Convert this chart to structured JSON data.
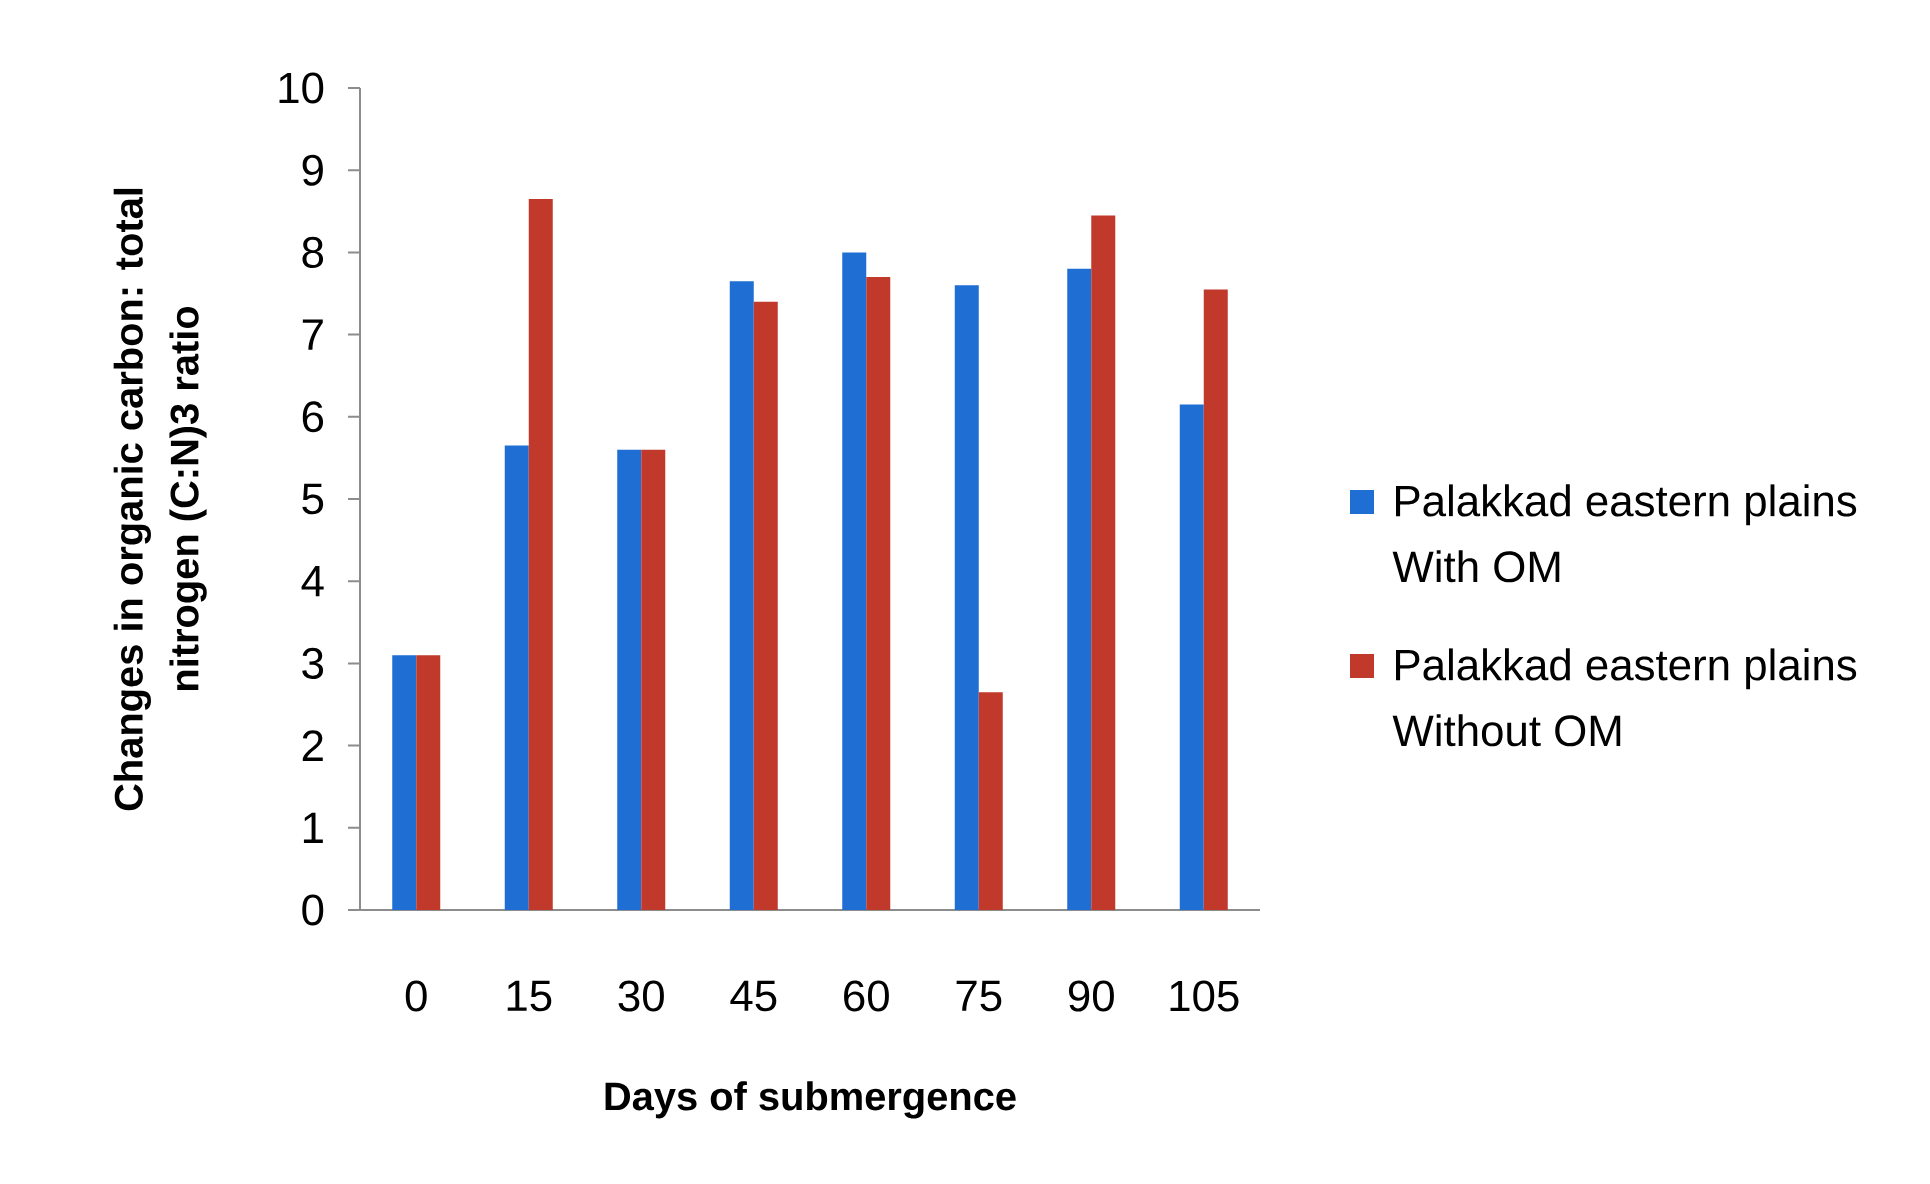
{
  "chart_data": {
    "type": "bar",
    "xlabel": "Days of submergence",
    "ylabel": "Changes in organic carbon: total nitrogen (C:N)3 ratio",
    "categories": [
      "0",
      "15",
      "30",
      "45",
      "60",
      "75",
      "90",
      "105"
    ],
    "series": [
      {
        "name": "Palakkad eastern plains With OM",
        "color": "#1f6ed4",
        "values": [
          3.1,
          5.65,
          5.6,
          7.65,
          8.0,
          7.6,
          7.8,
          6.15
        ]
      },
      {
        "name": "Palakkad eastern plains Without OM",
        "color": "#c0392b",
        "values": [
          3.1,
          8.65,
          5.6,
          7.4,
          7.7,
          2.65,
          8.45,
          7.55
        ]
      }
    ],
    "ylim": [
      0,
      10
    ],
    "yticks": [
      0,
      1,
      2,
      3,
      4,
      5,
      6,
      7,
      8,
      9,
      10
    ],
    "legend": "right"
  }
}
